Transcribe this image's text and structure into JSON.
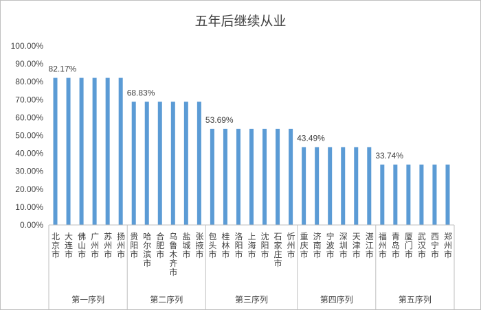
{
  "chart_data": {
    "type": "bar",
    "title": "五年后继续从业",
    "xlabel": "",
    "ylabel": "",
    "ylim": [
      0,
      1
    ],
    "ytick_labels": [
      "0.00%",
      "10.00%",
      "20.00%",
      "30.00%",
      "40.00%",
      "50.00%",
      "60.00%",
      "70.00%",
      "80.00%",
      "90.00%",
      "100.00%"
    ],
    "grid": false,
    "legend": "none",
    "bar_color": "#5b9bd5",
    "groups": [
      {
        "label": "第一序列",
        "data_label": "82.17%",
        "categories": [
          "北京市",
          "大连市",
          "佛山市",
          "广州市",
          "苏州市",
          "扬州市"
        ],
        "values": [
          0.8217,
          0.8217,
          0.8217,
          0.8217,
          0.8217,
          0.8217
        ]
      },
      {
        "label": "第二序列",
        "data_label": "68.83%",
        "categories": [
          "贵阳市",
          "哈尔滨市",
          "合肥市",
          "乌鲁木齐市",
          "盐城市",
          "张掖市"
        ],
        "values": [
          0.6883,
          0.6883,
          0.6883,
          0.6883,
          0.6883,
          0.6883
        ]
      },
      {
        "label": "第三序列",
        "data_label": "53.69%",
        "categories": [
          "包头市",
          "桂林市",
          "洛阳市",
          "上海市",
          "沈阳市",
          "石家庄市",
          "忻州市"
        ],
        "values": [
          0.5369,
          0.5369,
          0.5369,
          0.5369,
          0.5369,
          0.5369,
          0.5369
        ]
      },
      {
        "label": "第四序列",
        "data_label": "43.49%",
        "categories": [
          "重庆市",
          "济南市",
          "宁波市",
          "深圳市",
          "天津市",
          "湛江市"
        ],
        "values": [
          0.4349,
          0.4349,
          0.4349,
          0.4349,
          0.4349,
          0.4349
        ]
      },
      {
        "label": "第五序列",
        "data_label": "33.74%",
        "categories": [
          "福州市",
          "青岛市",
          "厦门市",
          "武汉市",
          "西宁市",
          "郑州市"
        ],
        "values": [
          0.3374,
          0.3374,
          0.3374,
          0.3374,
          0.3374,
          0.3374
        ]
      }
    ]
  }
}
